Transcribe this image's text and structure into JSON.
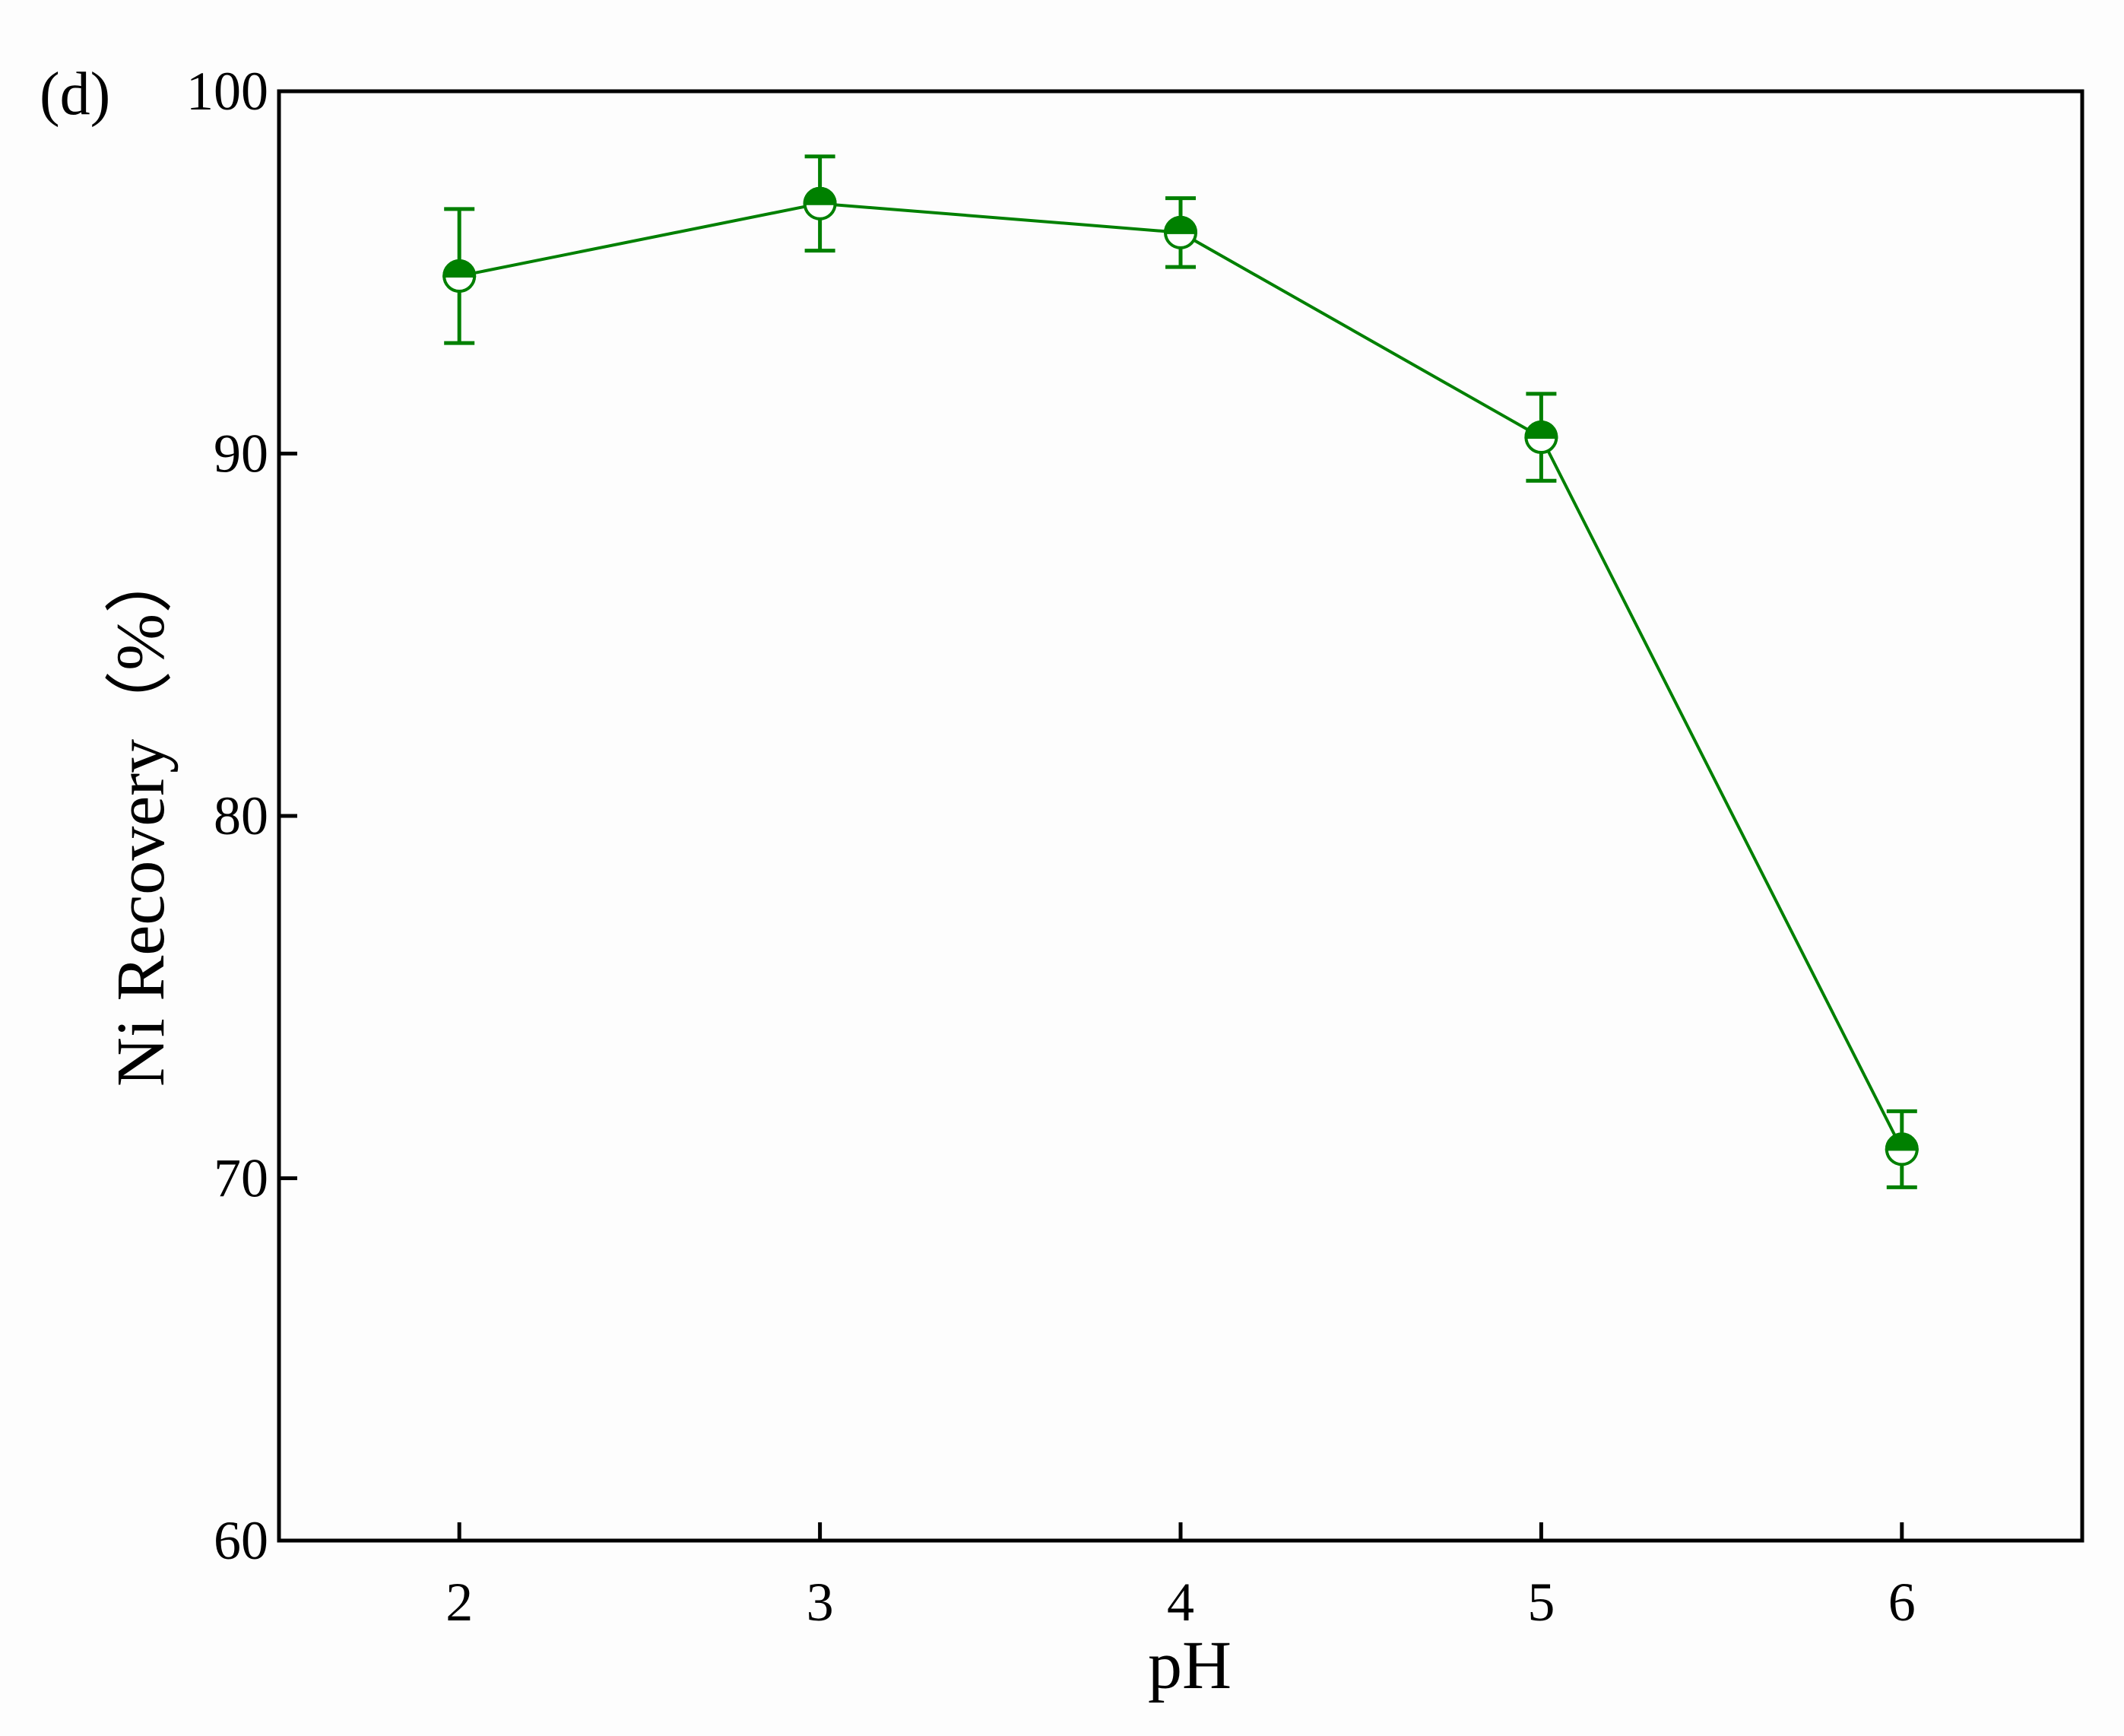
{
  "chart_data": {
    "type": "line",
    "panel_label": "(d)",
    "xlabel": "pH",
    "ylabel": "Ni Recovery（%）",
    "x": [
      2,
      3,
      4,
      5,
      6
    ],
    "series": [
      {
        "color": "#008000",
        "values": [
          94.9,
          96.9,
          96.1,
          90.45,
          70.8
        ],
        "errors": [
          1.85,
          1.3,
          0.95,
          1.2,
          1.05
        ]
      }
    ],
    "xlim": [
      1.5,
      6.5
    ],
    "xticks": [
      2,
      3,
      4,
      5,
      6
    ],
    "ylim": [
      60,
      100
    ],
    "yticks": [
      60,
      70,
      80,
      90,
      100
    ]
  }
}
